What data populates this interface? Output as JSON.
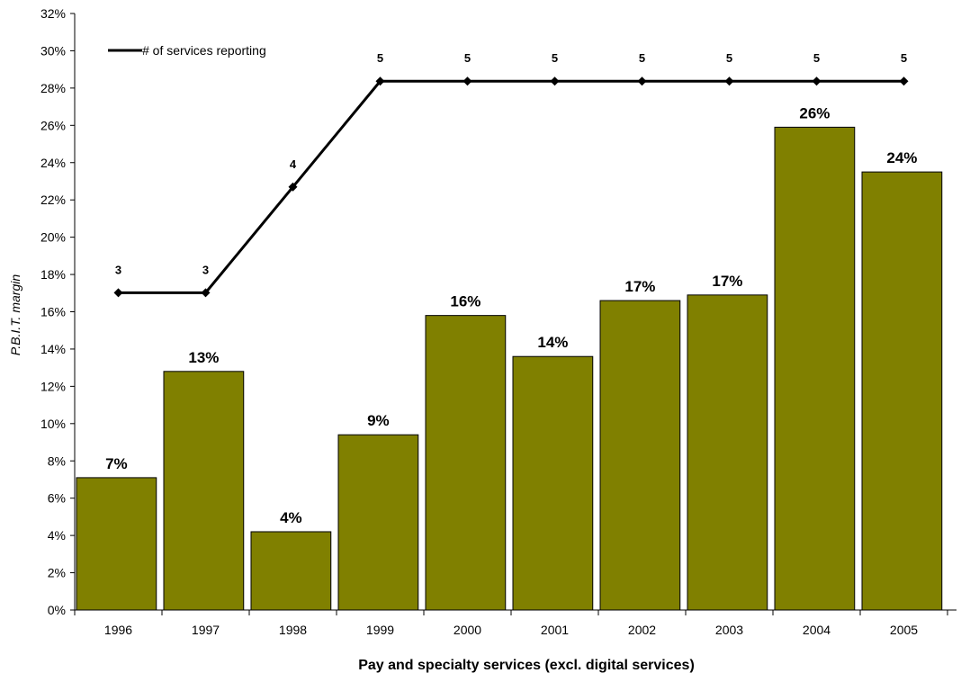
{
  "chart_data": {
    "type": "bar",
    "categories": [
      "1996",
      "1997",
      "1998",
      "1999",
      "2000",
      "2001",
      "2002",
      "2003",
      "2004",
      "2005"
    ],
    "series": [
      {
        "type": "bar",
        "values": [
          7.1,
          12.8,
          4.2,
          9.4,
          15.8,
          13.6,
          16.6,
          16.9,
          25.9,
          23.5
        ],
        "labels": [
          "7%",
          "13%",
          "4%",
          "9%",
          "16%",
          "14%",
          "17%",
          "17%",
          "26%",
          "24%"
        ],
        "color": "#808000"
      },
      {
        "type": "line",
        "name": "# of services reporting",
        "values": [
          3,
          3,
          4,
          5,
          5,
          5,
          5,
          5,
          5,
          5
        ],
        "color": "#000000"
      }
    ],
    "xlabel": "Pay and specialty services (excl. digital services)",
    "ylabel": "P.B.I.T. margin",
    "ylim": [
      0,
      32
    ],
    "yticks": [
      "0%",
      "2%",
      "4%",
      "6%",
      "8%",
      "10%",
      "12%",
      "14%",
      "16%",
      "18%",
      "20%",
      "22%",
      "24%",
      "26%",
      "28%",
      "30%",
      "32%"
    ],
    "line_ylim": [
      0,
      5.64
    ],
    "grid": false,
    "legend_position": "top-left"
  }
}
